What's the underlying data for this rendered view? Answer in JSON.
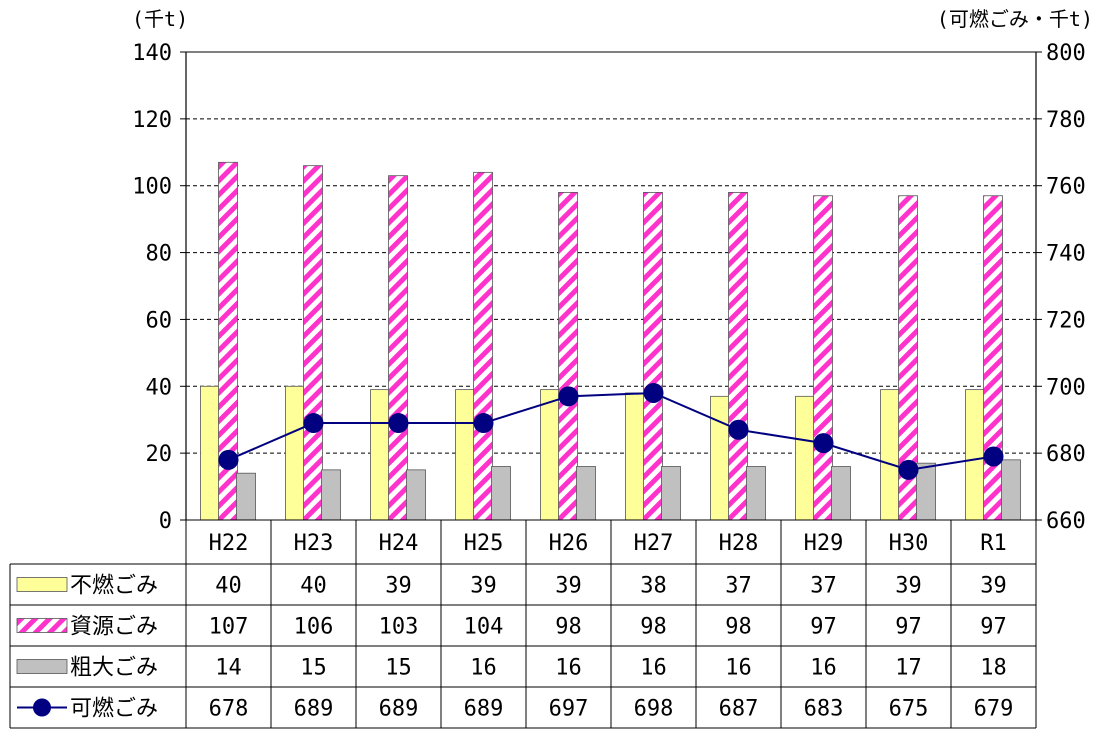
{
  "chart_data": {
    "type": "bar+line",
    "left_axis_unit": "(千t)",
    "right_axis_unit": "(可燃ごみ・千t)",
    "categories": [
      "H22",
      "H23",
      "H24",
      "H25",
      "H26",
      "H27",
      "H28",
      "H29",
      "H30",
      "R1"
    ],
    "y_left": {
      "min": 0,
      "max": 140,
      "ticks": [
        0,
        20,
        40,
        60,
        80,
        100,
        120,
        140
      ]
    },
    "y_right": {
      "min": 660,
      "max": 800,
      "ticks": [
        660,
        680,
        700,
        720,
        740,
        760,
        780,
        800
      ]
    },
    "gridlines": "dashed horizontal",
    "legend_placement": "data table rows below plot",
    "series": [
      {
        "name": "不燃ごみ",
        "type": "bar",
        "axis": "left",
        "pattern": "solid",
        "color": "#ffff99",
        "values": [
          40,
          40,
          39,
          39,
          39,
          38,
          37,
          37,
          39,
          39
        ]
      },
      {
        "name": "資源ごみ",
        "type": "bar",
        "axis": "left",
        "pattern": "diagonal-stripes",
        "color": "#ff33cc",
        "values": [
          107,
          106,
          103,
          104,
          98,
          98,
          98,
          97,
          97,
          97
        ]
      },
      {
        "name": "粗大ごみ",
        "type": "bar",
        "axis": "left",
        "pattern": "solid",
        "color": "#c0c0c0",
        "values": [
          14,
          15,
          15,
          16,
          16,
          16,
          16,
          16,
          17,
          18
        ]
      },
      {
        "name": "可燃ごみ",
        "type": "line",
        "axis": "right",
        "marker": "circle",
        "color": "#000080",
        "values": [
          678,
          689,
          689,
          689,
          697,
          698,
          687,
          683,
          675,
          679
        ]
      }
    ]
  }
}
